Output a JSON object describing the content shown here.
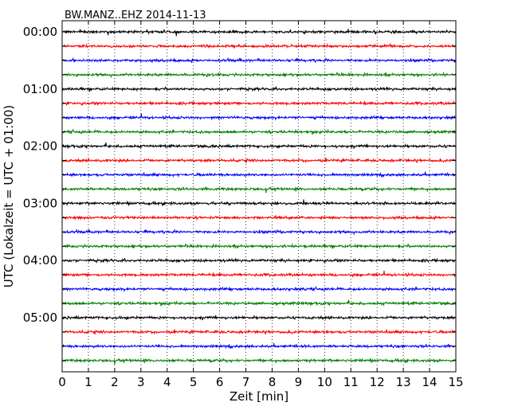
{
  "chart_data": {
    "type": "line",
    "title": "BW.MANZ..EHZ 2014-11-13",
    "xlabel": "Zeit  [min]",
    "ylabel": "UTC (Lokalzeit = UTC + 01:00)",
    "xlim": [
      0,
      15
    ],
    "x_ticks": [
      "0",
      "1",
      "2",
      "3",
      "4",
      "5",
      "6",
      "7",
      "8",
      "9",
      "10",
      "11",
      "12",
      "13",
      "14",
      "15"
    ],
    "y_tick_labels": [
      "00:00",
      "01:00",
      "02:00",
      "03:00",
      "04:00",
      "05:00"
    ],
    "grid": "vertical dotted",
    "trace_interval_min": 15,
    "trace_start_times": [
      "00:00",
      "00:15",
      "00:30",
      "00:45",
      "01:00",
      "01:15",
      "01:30",
      "01:45",
      "02:00",
      "02:15",
      "02:30",
      "02:45",
      "03:00",
      "03:15",
      "03:30",
      "03:45",
      "04:00",
      "04:15",
      "04:30",
      "04:45",
      "05:00",
      "05:15",
      "05:30",
      "05:45"
    ],
    "trace_color_cycle": [
      "#000000",
      "#ff0000",
      "#0000ff",
      "#008000"
    ]
  }
}
